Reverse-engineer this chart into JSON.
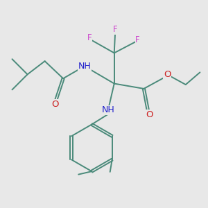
{
  "bg_color": "#e8e8e8",
  "bond_color": "#4a8a7a",
  "bond_width": 1.4,
  "N_color": "#2020cc",
  "O_color": "#cc2020",
  "F_color": "#cc44cc",
  "H_color": "#888888",
  "font_size": 8.5,
  "figsize": [
    3.0,
    3.0
  ],
  "dpi": 100,
  "xlim": [
    0,
    10
  ],
  "ylim": [
    0,
    10
  ]
}
